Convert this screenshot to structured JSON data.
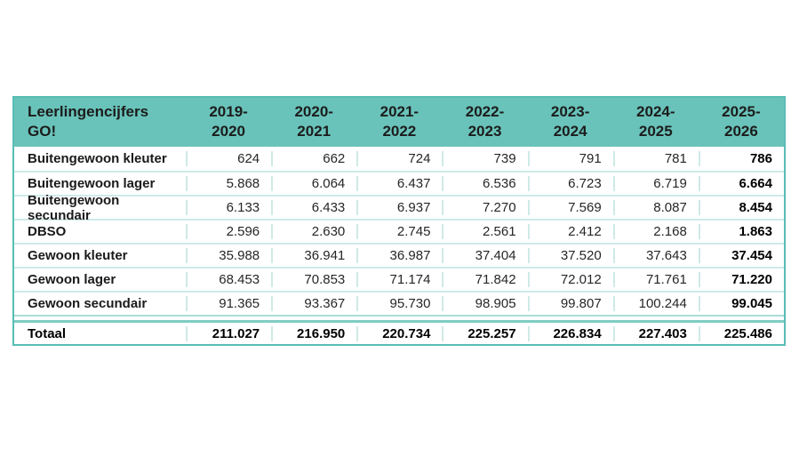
{
  "page": {
    "background": "#ffffff"
  },
  "colors": {
    "header_background": "#69c3ba",
    "outer_border": "#58bdb4",
    "gridline": "#cfeae6",
    "strong_line": "#7fccc4",
    "header_text": "#1c1c1c",
    "cell_text": "#262626",
    "bold_text": "#000000"
  },
  "table": {
    "title": "Leerlingencijfers\nGO!",
    "columns": [
      "2019-\n2020",
      "2020-\n2021",
      "2021-\n2022",
      "2022-\n2023",
      "2023-\n2024",
      "2024-\n2025",
      "2025-\n2026"
    ],
    "rows": [
      {
        "label": "Buitengewoon kleuter",
        "values": [
          "624",
          "662",
          "724",
          "739",
          "791",
          "781",
          "786"
        ]
      },
      {
        "label": "Buitengewoon lager",
        "values": [
          "5.868",
          "6.064",
          "6.437",
          "6.536",
          "6.723",
          "6.719",
          "6.664"
        ]
      },
      {
        "label": "Buitengewoon secundair",
        "values": [
          "6.133",
          "6.433",
          "6.937",
          "7.270",
          "7.569",
          "8.087",
          "8.454"
        ]
      },
      {
        "label": "DBSO",
        "values": [
          "2.596",
          "2.630",
          "2.745",
          "2.561",
          "2.412",
          "2.168",
          "1.863"
        ]
      },
      {
        "label": "Gewoon kleuter",
        "values": [
          "35.988",
          "36.941",
          "36.987",
          "37.404",
          "37.520",
          "37.643",
          "37.454"
        ]
      },
      {
        "label": "Gewoon lager",
        "values": [
          "68.453",
          "70.853",
          "71.174",
          "71.842",
          "72.012",
          "71.761",
          "71.220"
        ]
      },
      {
        "label": "Gewoon secundair",
        "values": [
          "91.365",
          "93.367",
          "95.730",
          "98.905",
          "99.807",
          "100.244",
          "99.045"
        ]
      }
    ],
    "total": {
      "label": "Totaal",
      "values": [
        "211.027",
        "216.950",
        "220.734",
        "225.257",
        "226.834",
        "227.403",
        "225.486"
      ]
    }
  }
}
